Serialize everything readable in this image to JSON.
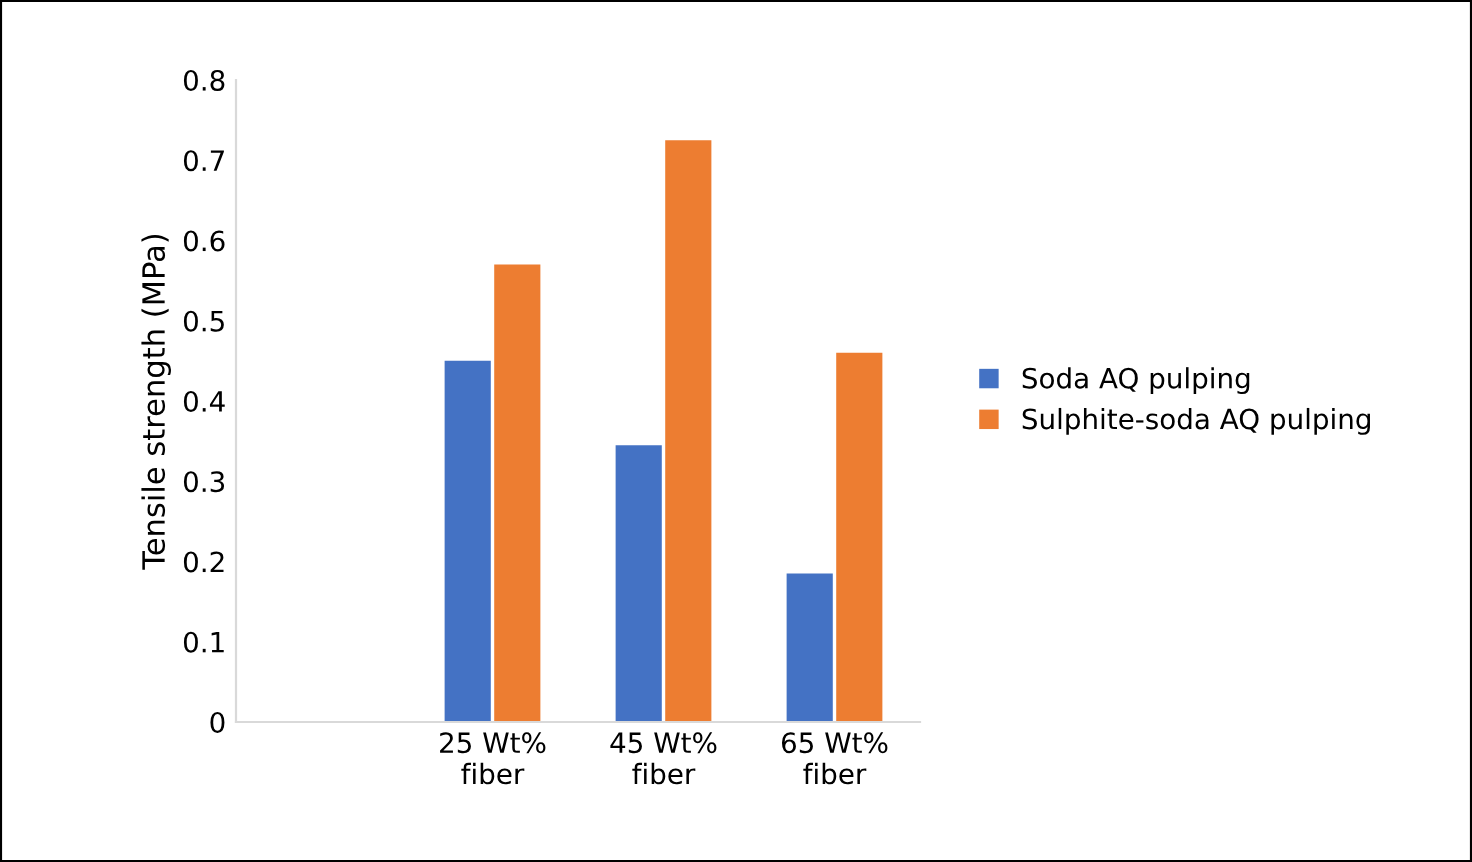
{
  "chart_data": {
    "type": "bar",
    "ylabel": "Tensile strength (MPa)",
    "categories": [
      null,
      "25 Wt%\nfiber",
      "45 Wt%\nfiber",
      "65 Wt%\nfiber"
    ],
    "series": [
      {
        "name": "Soda AQ pulping",
        "color": "#4472c4",
        "values": [
          null,
          0.45,
          0.345,
          0.185
        ]
      },
      {
        "name": "Sulphite-soda AQ pulping",
        "color": "#ed7d31",
        "values": [
          null,
          0.57,
          0.725,
          0.46
        ]
      }
    ],
    "ylim": [
      0,
      0.8
    ],
    "yticks": [
      0,
      0.1,
      0.2,
      0.3,
      0.4,
      0.5,
      0.6,
      0.7,
      0.8
    ],
    "grid": false,
    "legend": "right"
  }
}
